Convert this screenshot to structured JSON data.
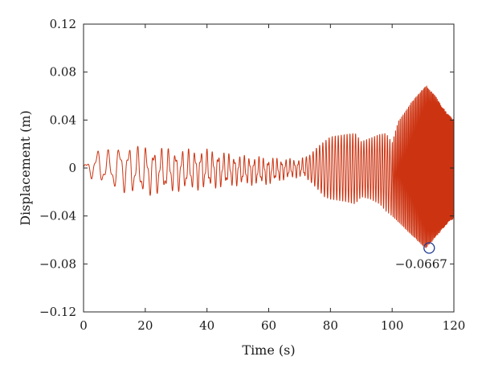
{
  "chart_data": {
    "type": "line",
    "xlabel": "Time (s)",
    "ylabel": "Displacement (m)",
    "xlim": [
      0,
      120
    ],
    "ylim": [
      -0.12,
      0.12
    ],
    "x_ticks": [
      0,
      20,
      40,
      60,
      80,
      100,
      120
    ],
    "y_ticks": [
      -0.12,
      -0.08,
      -0.04,
      0,
      0.04,
      0.08,
      0.12
    ],
    "y_tick_labels": [
      "−0.12",
      "−0.08",
      "−0.04",
      "0",
      "0.04",
      "0.08",
      "0.12"
    ],
    "grid": false,
    "series": [
      {
        "color": "#cc3311",
        "envelope": {
          "t": [
            0,
            2,
            4,
            10,
            12,
            18,
            20,
            30,
            40,
            50,
            60,
            65,
            70,
            73,
            76,
            78,
            80,
            85,
            88,
            90,
            93,
            96,
            98,
            100,
            102,
            104,
            106,
            108,
            110,
            111,
            112,
            114,
            116,
            118,
            120
          ],
          "upper": [
            0.003,
            0.008,
            0.016,
            0.015,
            0.021,
            0.018,
            0.019,
            0.016,
            0.016,
            0.011,
            0.009,
            0.008,
            0.008,
            0.01,
            0.018,
            0.022,
            0.026,
            0.028,
            0.029,
            0.022,
            0.025,
            0.028,
            0.029,
            0.021,
            0.039,
            0.046,
            0.054,
            0.06,
            0.066,
            0.069,
            0.066,
            0.06,
            0.052,
            0.045,
            0.04
          ],
          "lower": [
            -0.003,
            -0.008,
            -0.012,
            -0.018,
            -0.02,
            -0.023,
            -0.024,
            -0.02,
            -0.018,
            -0.015,
            -0.014,
            -0.01,
            -0.008,
            -0.01,
            -0.018,
            -0.024,
            -0.026,
            -0.028,
            -0.03,
            -0.024,
            -0.026,
            -0.03,
            -0.036,
            -0.04,
            -0.045,
            -0.05,
            -0.055,
            -0.06,
            -0.065,
            -0.0667,
            -0.064,
            -0.058,
            -0.052,
            -0.046,
            -0.042
          ]
        }
      }
    ],
    "annotation": {
      "x": 112,
      "y": -0.0667,
      "label": "−0.0667",
      "marker": "circle",
      "marker_color": "#1f3a93"
    }
  }
}
